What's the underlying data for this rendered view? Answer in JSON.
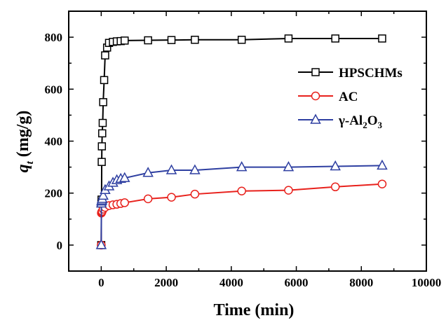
{
  "chart_data": {
    "type": "line",
    "xlabel": "Time (min)",
    "ylabel": "q",
    "ylabel_subscript": "t",
    "ylabel_units": " (mg/g)",
    "xlim": [
      -1000,
      10000
    ],
    "ylim": [
      -100,
      900
    ],
    "x_ticks": [
      0,
      2000,
      4000,
      6000,
      8000,
      10000
    ],
    "y_ticks": [
      0,
      200,
      400,
      600,
      800
    ],
    "grid": false,
    "legend_position": "right",
    "series": [
      {
        "name": "HPSCHMs",
        "color": "#000000",
        "marker": "square",
        "x": [
          0,
          5,
          10,
          15,
          20,
          30,
          45,
          60,
          90,
          120,
          180,
          240,
          360,
          480,
          600,
          720,
          1440,
          2160,
          2880,
          4320,
          5760,
          7200,
          8640
        ],
        "y": [
          0,
          160,
          175,
          320,
          380,
          430,
          470,
          550,
          635,
          730,
          760,
          778,
          782,
          784,
          785,
          787,
          788,
          789,
          790,
          790,
          795,
          795,
          795
        ]
      },
      {
        "name": "AC",
        "color": "#e8211c",
        "marker": "circle",
        "x": [
          0,
          5,
          10,
          15,
          20,
          30,
          60,
          120,
          240,
          360,
          480,
          600,
          720,
          1440,
          2160,
          2880,
          4320,
          5760,
          7200,
          8640
        ],
        "y": [
          0,
          123,
          125,
          127,
          128,
          130,
          138,
          145,
          152,
          155,
          157,
          160,
          163,
          178,
          184,
          196,
          208,
          211,
          224,
          235
        ]
      },
      {
        "name": "γ-Al",
        "name_sub1": "2",
        "name_mid": "O",
        "name_sub2": "3",
        "color": "#2e3fa1",
        "marker": "triangle",
        "x": [
          0,
          5,
          10,
          20,
          30,
          60,
          120,
          240,
          360,
          480,
          600,
          720,
          1440,
          2160,
          2880,
          4320,
          5760,
          7200,
          8640
        ],
        "y": [
          0,
          160,
          168,
          172,
          178,
          190,
          212,
          226,
          240,
          250,
          255,
          258,
          278,
          288,
          288,
          300,
          300,
          303,
          306
        ]
      }
    ]
  }
}
